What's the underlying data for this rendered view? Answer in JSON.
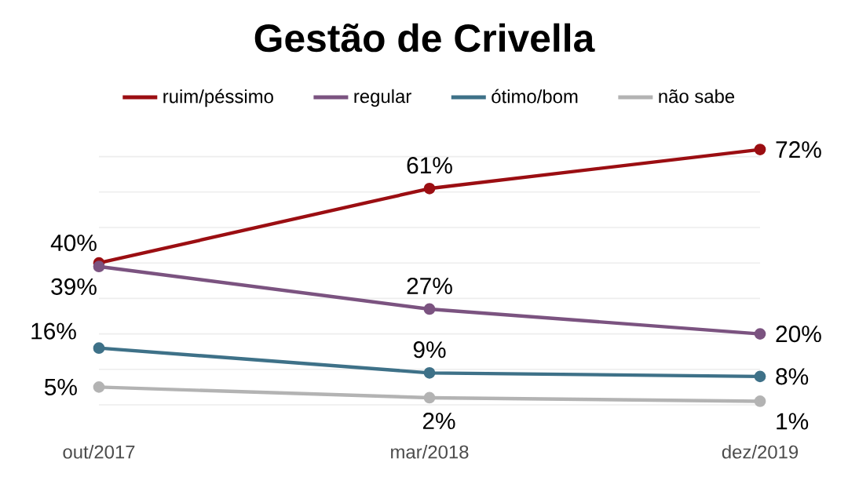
{
  "chart_data": {
    "type": "line",
    "title": "Gestão de Crivella",
    "categories": [
      "out/2017",
      "mar/2018",
      "dez/2019"
    ],
    "series": [
      {
        "name": "ruim/péssimo",
        "color": "#9b0e12",
        "values": [
          40,
          61,
          72
        ],
        "value_labels": [
          "40%",
          "61%",
          "72%"
        ]
      },
      {
        "name": "regular",
        "color": "#7b5380",
        "values": [
          39,
          27,
          20
        ],
        "value_labels": [
          "39%",
          "27%",
          "20%"
        ]
      },
      {
        "name": "ótimo/bom",
        "color": "#3e7188",
        "values": [
          16,
          9,
          8
        ],
        "value_labels": [
          "16%",
          "9%",
          "8%"
        ]
      },
      {
        "name": "não sabe",
        "color": "#b3b3b3",
        "values": [
          5,
          2,
          1
        ],
        "value_labels": [
          "5%",
          "2%",
          "1%"
        ]
      }
    ],
    "yticks": [
      {
        "value": 0,
        "label": null
      },
      {
        "value": 10,
        "label": null
      },
      {
        "value": 20,
        "label": null
      },
      {
        "value": 30,
        "label": null
      },
      {
        "value": 40,
        "label": null
      },
      {
        "value": 50,
        "label": null
      },
      {
        "value": 60,
        "label": null
      },
      {
        "value": 70,
        "label": null
      }
    ],
    "grid": "y",
    "tick_labels": "x",
    "legend": "top",
    "marker": "circle",
    "line_style": "solid"
  }
}
